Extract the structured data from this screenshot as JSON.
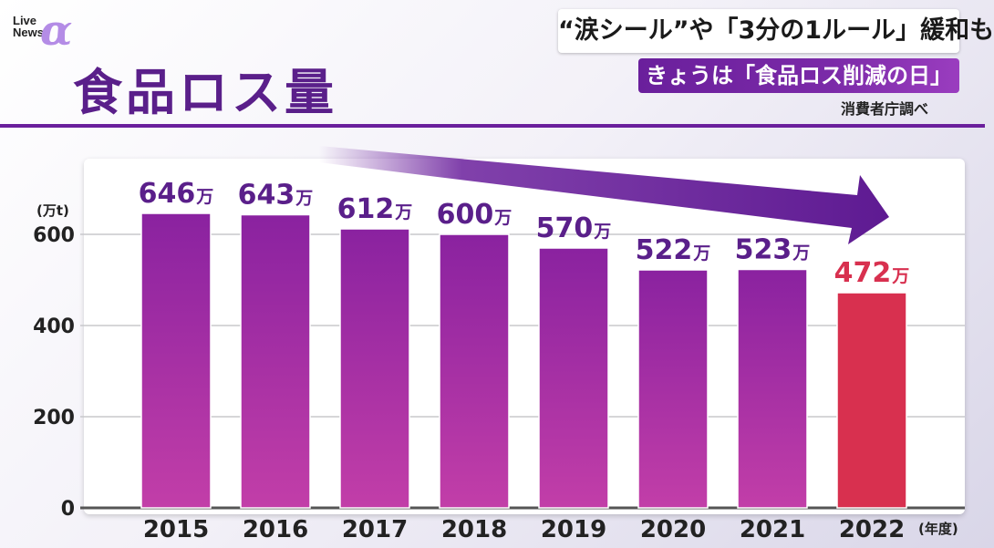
{
  "logo": {
    "text_line1": "Live",
    "text_line2": "News",
    "mark": "α"
  },
  "headline": {
    "line1": "“涙シール”や「3分の1ルール」緩和も",
    "line2": "きょうは「食品ロス削減の日」"
  },
  "title": "食品ロス量",
  "source": "消費者庁調べ",
  "colors": {
    "accent": "#6a1f9c",
    "bar_top": "#8a22a0",
    "bar_bottom": "#c23ea8",
    "highlight": "#d8304f",
    "label": "#5a1f8a"
  },
  "chart_data": {
    "type": "bar",
    "categories": [
      "2015",
      "2016",
      "2017",
      "2018",
      "2019",
      "2020",
      "2021",
      "2022"
    ],
    "values": [
      646,
      643,
      612,
      600,
      570,
      522,
      523,
      472
    ],
    "value_labels": [
      "646",
      "643",
      "612",
      "600",
      "570",
      "522",
      "523",
      "472"
    ],
    "value_suffix": "万",
    "ylabel": "(万t)",
    "xlabel": "(年度)",
    "ylim": [
      0,
      700
    ],
    "yticks": [
      0,
      200,
      400,
      600
    ],
    "grid": true,
    "highlight_index": 7,
    "trend_arrow": "down"
  }
}
